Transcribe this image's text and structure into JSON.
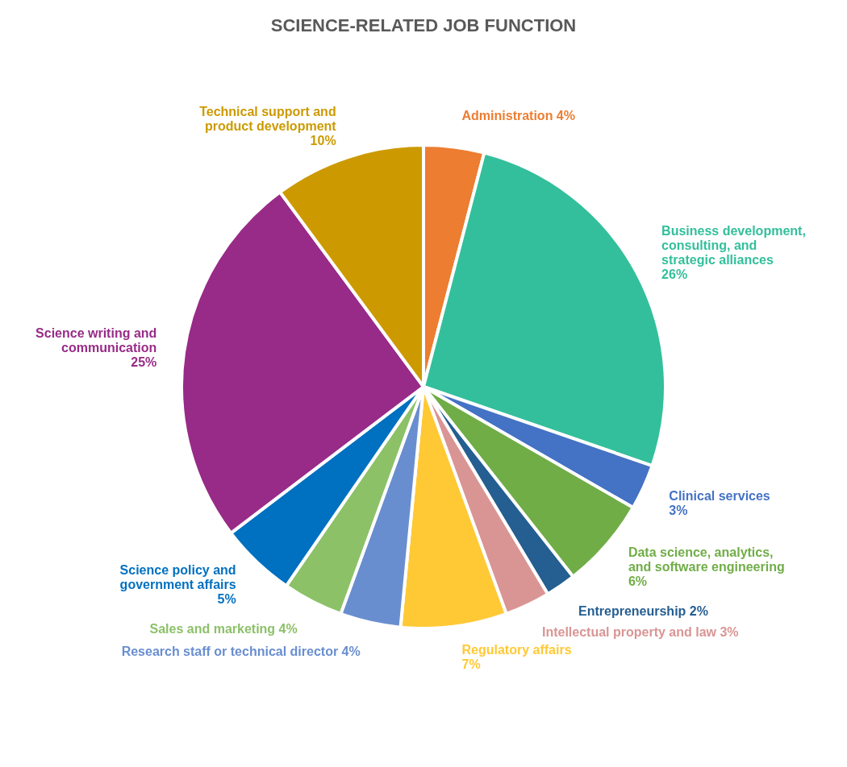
{
  "chart_data": {
    "type": "pie",
    "title": "SCIENCE-RELATED JOB FUNCTION",
    "categories": [
      "Administration",
      "Business development, consulting, and strategic alliances",
      "Clinical services",
      "Data science, analytics, and software engineering",
      "Entrepreneurship",
      "Intellectual property and law",
      "Regulatory affairs",
      "Research staff or technical director",
      "Sales and marketing",
      "Science policy and government affairs",
      "Science writing and communication",
      "Technical support and product development"
    ],
    "values": [
      4,
      26,
      3,
      6,
      2,
      3,
      7,
      4,
      4,
      5,
      25,
      10
    ],
    "value_labels": [
      "4%",
      "26%",
      "3%",
      "6%",
      "2%",
      "3%",
      "7%",
      "4%",
      "4%",
      "5%",
      "25%",
      "10%"
    ],
    "colors": [
      "#ed7d31",
      "#33bf9b",
      "#4472c4",
      "#70ad47",
      "#255e91",
      "#d99594",
      "#ffc936",
      "#698ed0",
      "#8cc168",
      "#0070c0",
      "#982b87",
      "#cc9a00"
    ]
  }
}
